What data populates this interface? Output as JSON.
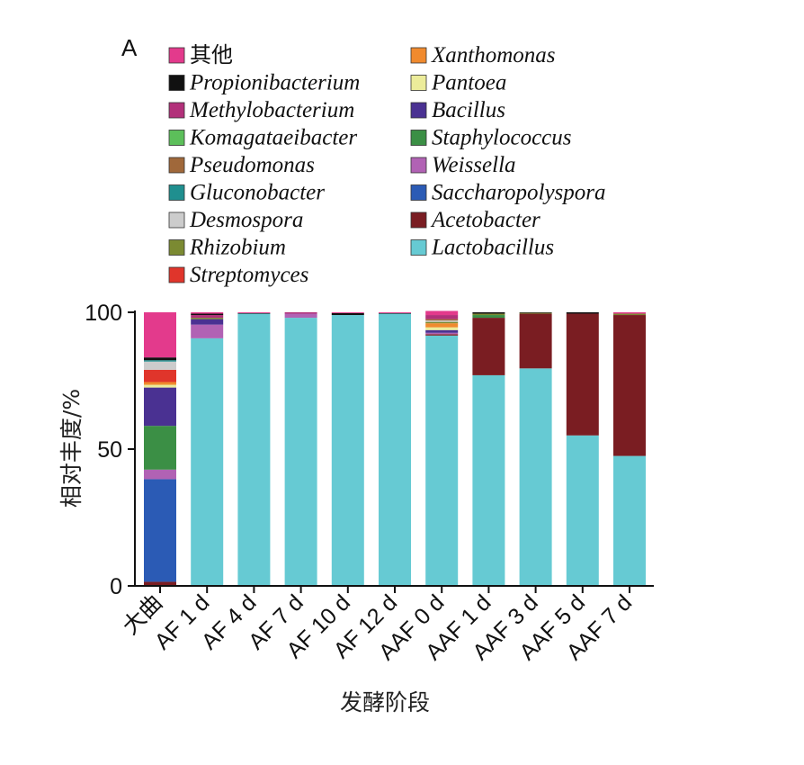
{
  "panel_label": "A",
  "chart_data": {
    "type": "bar",
    "stacked": true,
    "title": "",
    "xlabel": "发酵阶段",
    "ylabel": "相对丰度/%",
    "ylim": [
      0,
      100
    ],
    "yticks": [
      0,
      50,
      100
    ],
    "legend_placement": "top",
    "categories": [
      "大曲",
      "AF 1 d",
      "AF 4 d",
      "AF 7 d",
      "AF 10 d",
      "AF 12 d",
      "AAF 0 d",
      "AAF 1 d",
      "AAF 3 d",
      "AAF 5 d",
      "AAF 7 d"
    ],
    "legend": [
      {
        "key": "qita",
        "name": "其他",
        "color": "#e33a8c",
        "cjk": true
      },
      {
        "key": "propioni",
        "name": "Propionibacterium",
        "color": "#111111"
      },
      {
        "key": "methylo",
        "name": "Methylobacterium",
        "color": "#b2307a"
      },
      {
        "key": "komaga",
        "name": "Komagataeibacter",
        "color": "#5cbf5a"
      },
      {
        "key": "pseudo",
        "name": "Pseudomonas",
        "color": "#a0683a"
      },
      {
        "key": "glucono",
        "name": "Gluconobacter",
        "color": "#1f8f8f"
      },
      {
        "key": "desmo",
        "name": "Desmospora",
        "color": "#cccccc"
      },
      {
        "key": "rhizo",
        "name": "Rhizobium",
        "color": "#7b8a32"
      },
      {
        "key": "strepto",
        "name": "Streptomyces",
        "color": "#e0352b"
      },
      {
        "key": "xantho",
        "name": "Xanthomonas",
        "color": "#f08a2e"
      },
      {
        "key": "pantoea",
        "name": "Pantoea",
        "color": "#ecec9a"
      },
      {
        "key": "bacillus",
        "name": "Bacillus",
        "color": "#4a3192"
      },
      {
        "key": "staphylo",
        "name": "Staphylococcus",
        "color": "#3b8f45"
      },
      {
        "key": "weissella",
        "name": "Weissella",
        "color": "#b162b4"
      },
      {
        "key": "saccharo",
        "name": "Saccharopolyspora",
        "color": "#2b5bb5"
      },
      {
        "key": "aceto",
        "name": "Acetobacter",
        "color": "#7a1d22"
      },
      {
        "key": "lacto",
        "name": "Lactobacillus",
        "color": "#66cad3"
      }
    ],
    "stack_order": [
      "lacto",
      "aceto",
      "saccharo",
      "weissella",
      "staphylo",
      "bacillus",
      "pantoea",
      "xantho",
      "strepto",
      "rhizo",
      "desmo",
      "glucono",
      "pseudo",
      "komaga",
      "methylo",
      "propioni",
      "qita"
    ],
    "series": [
      {
        "key": "lacto",
        "values": [
          0,
          90.5,
          99.5,
          98,
          99,
          99.5,
          91.5,
          77,
          79.5,
          55,
          47.5
        ]
      },
      {
        "key": "aceto",
        "values": [
          1.5,
          0,
          0,
          0,
          0,
          0,
          0.5,
          21,
          20,
          44.5,
          51.5
        ]
      },
      {
        "key": "saccharo",
        "values": [
          37.5,
          0,
          0,
          0,
          0,
          0,
          0,
          0,
          0,
          0,
          0
        ]
      },
      {
        "key": "weissella",
        "values": [
          3.5,
          5,
          0,
          1.5,
          0,
          0,
          0.5,
          0,
          0,
          0,
          0
        ]
      },
      {
        "key": "staphylo",
        "values": [
          16,
          0,
          0,
          0,
          0,
          0,
          0,
          1,
          0,
          0,
          0
        ]
      },
      {
        "key": "bacillus",
        "values": [
          14,
          2,
          0,
          0,
          0,
          0,
          1,
          0,
          0,
          0,
          0
        ]
      },
      {
        "key": "pantoea",
        "values": [
          1,
          0,
          0,
          0,
          0,
          0,
          1,
          0,
          0,
          0,
          0
        ]
      },
      {
        "key": "xantho",
        "values": [
          1,
          0,
          0,
          0,
          0,
          0,
          1.5,
          0,
          0,
          0,
          0
        ]
      },
      {
        "key": "strepto",
        "values": [
          4.5,
          0,
          0,
          0,
          0,
          0,
          0,
          0,
          0,
          0,
          0
        ]
      },
      {
        "key": "rhizo",
        "values": [
          0,
          0.5,
          0,
          0,
          0,
          0,
          0.5,
          0.5,
          0.3,
          0,
          0.5
        ]
      },
      {
        "key": "desmo",
        "values": [
          3,
          0,
          0,
          0,
          0,
          0,
          0.5,
          0,
          0,
          0,
          0
        ]
      },
      {
        "key": "glucono",
        "values": [
          0.5,
          0,
          0,
          0,
          0,
          0,
          0,
          0,
          0,
          0,
          0
        ]
      },
      {
        "key": "pseudo",
        "values": [
          0,
          0,
          0,
          0,
          0,
          0,
          0.5,
          0,
          0,
          0,
          0
        ]
      },
      {
        "key": "komaga",
        "values": [
          0,
          0,
          0,
          0,
          0,
          0,
          0,
          0,
          0,
          0,
          0
        ]
      },
      {
        "key": "methylo",
        "values": [
          0,
          1,
          0,
          0.5,
          0,
          0,
          1.5,
          0,
          0,
          0,
          0
        ]
      },
      {
        "key": "propioni",
        "values": [
          1,
          0.5,
          0.2,
          0,
          0.7,
          0.2,
          0,
          0.5,
          0.2,
          0.5,
          0
        ]
      },
      {
        "key": "qita",
        "values": [
          16.5,
          0.5,
          0.3,
          0,
          0.3,
          0.3,
          1.5,
          0,
          0,
          0,
          0.5
        ]
      }
    ]
  }
}
